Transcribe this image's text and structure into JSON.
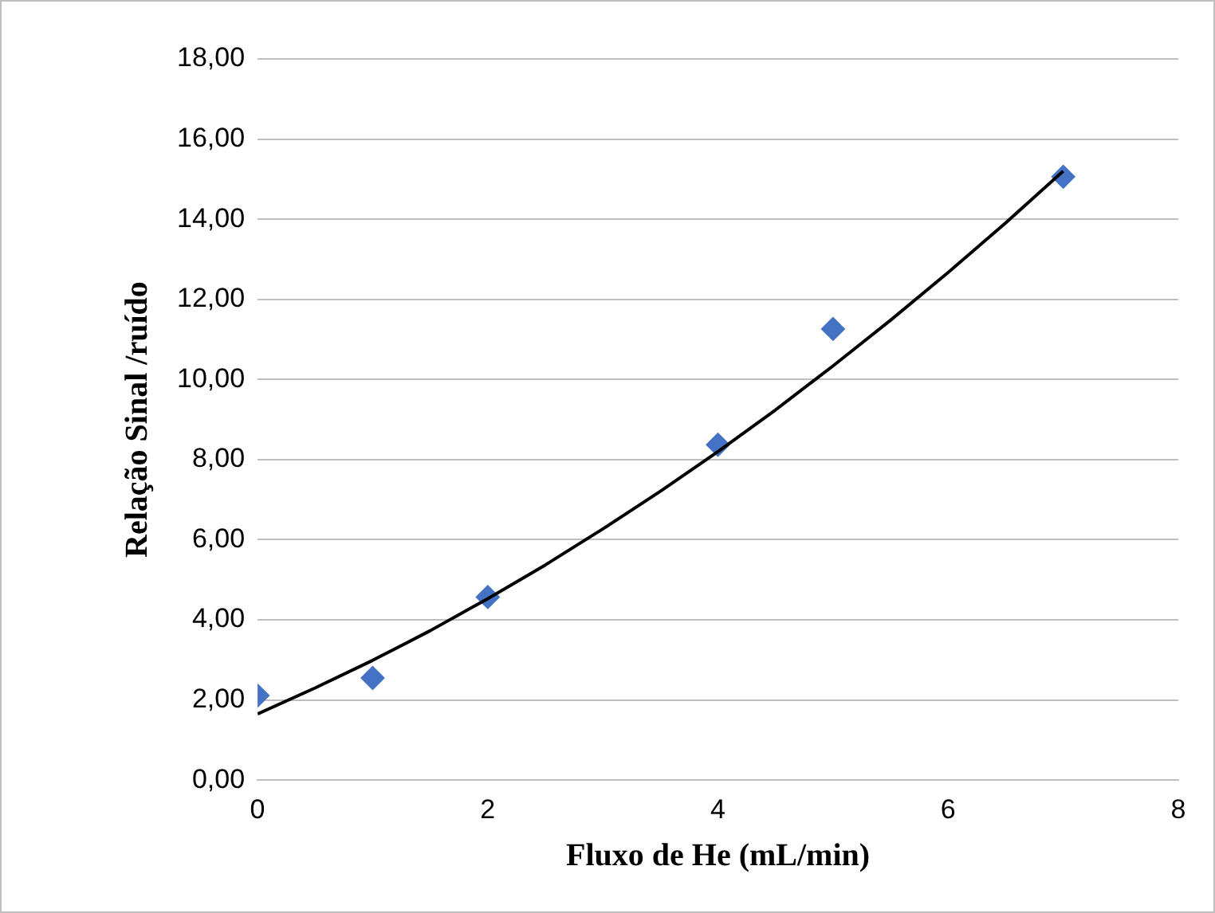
{
  "chart_data": {
    "type": "scatter",
    "xlabel": "Fluxo de He (mL/min)",
    "ylabel": "Relação Sinal /ruído",
    "series": [
      {
        "type": "scatter",
        "color": "#4472c4",
        "marker": "diamond",
        "x": [
          0,
          1,
          2,
          4,
          5,
          7
        ],
        "values": [
          2.11,
          2.55,
          4.57,
          8.37,
          11.26,
          15.06
        ]
      },
      {
        "type": "line",
        "color": "#000000",
        "marker": "none",
        "line_style": "solid",
        "x": [
          0,
          0.5,
          1,
          1.5,
          2,
          2.5,
          3,
          3.5,
          4,
          4.5,
          5,
          5.5,
          6,
          6.5,
          7
        ],
        "values": [
          1.65,
          2.3,
          2.99,
          3.73,
          4.53,
          5.37,
          6.27,
          7.21,
          8.2,
          9.24,
          10.34,
          11.48,
          12.67,
          13.91,
          15.2
        ]
      }
    ],
    "xlim": [
      0,
      8
    ],
    "xticks": [
      0,
      2,
      4,
      6,
      8
    ],
    "ylim": [
      0,
      18
    ],
    "yticks": [
      {
        "value": 0,
        "label": "0,00"
      },
      {
        "value": 2,
        "label": "2,00"
      },
      {
        "value": 4,
        "label": "4,00"
      },
      {
        "value": 6,
        "label": "6,00"
      },
      {
        "value": 8,
        "label": "8,00"
      },
      {
        "value": 10,
        "label": "10,00"
      },
      {
        "value": 12,
        "label": "12,00"
      },
      {
        "value": 14,
        "label": "14,00"
      },
      {
        "value": 16,
        "label": "16,00"
      },
      {
        "value": 18,
        "label": "18,00"
      }
    ],
    "grid": "y",
    "legend": false
  }
}
